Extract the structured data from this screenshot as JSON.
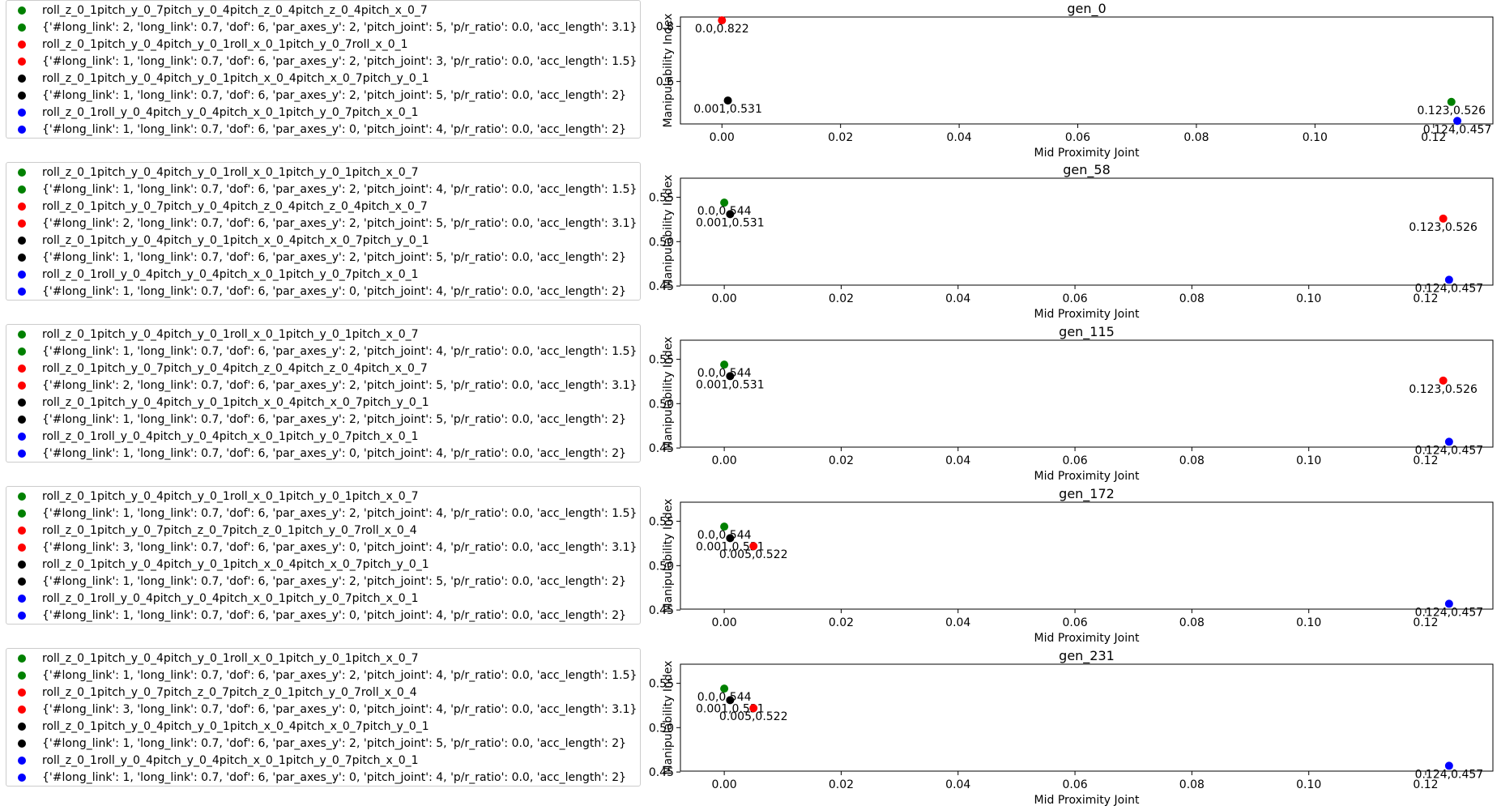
{
  "colors": {
    "green": "#008000",
    "red": "#ff0000",
    "black": "#000000",
    "blue": "#0000ff"
  },
  "legends": [
    {
      "entries": [
        {
          "color": "green",
          "label": "roll_z_0_1pitch_y_0_7pitch_y_0_4pitch_z_0_4pitch_z_0_4pitch_x_0_7"
        },
        {
          "color": "green",
          "label": "{'#long_link': 2, 'long_link': 0.7, 'dof': 6, 'par_axes_y': 2, 'pitch_joint': 5, 'p/r_ratio': 0.0, 'acc_length': 3.1}"
        },
        {
          "color": "red",
          "label": "roll_z_0_1pitch_y_0_4pitch_y_0_1roll_x_0_1pitch_y_0_7roll_x_0_1"
        },
        {
          "color": "red",
          "label": "{'#long_link': 1, 'long_link': 0.7, 'dof': 6, 'par_axes_y': 2, 'pitch_joint': 3, 'p/r_ratio': 0.0, 'acc_length': 1.5}"
        },
        {
          "color": "black",
          "label": "roll_z_0_1pitch_y_0_4pitch_y_0_1pitch_x_0_4pitch_x_0_7pitch_y_0_1"
        },
        {
          "color": "black",
          "label": "{'#long_link': 1, 'long_link': 0.7, 'dof': 6, 'par_axes_y': 2, 'pitch_joint': 5, 'p/r_ratio': 0.0, 'acc_length': 2}"
        },
        {
          "color": "blue",
          "label": "roll_z_0_1roll_y_0_4pitch_y_0_4pitch_x_0_1pitch_y_0_7pitch_x_0_1"
        },
        {
          "color": "blue",
          "label": "{'#long_link': 1, 'long_link': 0.7, 'dof': 6, 'par_axes_y': 0, 'pitch_joint': 4, 'p/r_ratio': 0.0, 'acc_length': 2}"
        }
      ]
    },
    {
      "entries": [
        {
          "color": "green",
          "label": "roll_z_0_1pitch_y_0_4pitch_y_0_1roll_x_0_1pitch_y_0_1pitch_x_0_7"
        },
        {
          "color": "green",
          "label": "{'#long_link': 1, 'long_link': 0.7, 'dof': 6, 'par_axes_y': 2, 'pitch_joint': 4, 'p/r_ratio': 0.0, 'acc_length': 1.5}"
        },
        {
          "color": "red",
          "label": "roll_z_0_1pitch_y_0_7pitch_y_0_4pitch_z_0_4pitch_z_0_4pitch_x_0_7"
        },
        {
          "color": "red",
          "label": "{'#long_link': 2, 'long_link': 0.7, 'dof': 6, 'par_axes_y': 2, 'pitch_joint': 5, 'p/r_ratio': 0.0, 'acc_length': 3.1}"
        },
        {
          "color": "black",
          "label": "roll_z_0_1pitch_y_0_4pitch_y_0_1pitch_x_0_4pitch_x_0_7pitch_y_0_1"
        },
        {
          "color": "black",
          "label": "{'#long_link': 1, 'long_link': 0.7, 'dof': 6, 'par_axes_y': 2, 'pitch_joint': 5, 'p/r_ratio': 0.0, 'acc_length': 2}"
        },
        {
          "color": "blue",
          "label": "roll_z_0_1roll_y_0_4pitch_y_0_4pitch_x_0_1pitch_y_0_7pitch_x_0_1"
        },
        {
          "color": "blue",
          "label": "{'#long_link': 1, 'long_link': 0.7, 'dof': 6, 'par_axes_y': 0, 'pitch_joint': 4, 'p/r_ratio': 0.0, 'acc_length': 2}"
        }
      ]
    },
    {
      "entries": [
        {
          "color": "green",
          "label": "roll_z_0_1pitch_y_0_4pitch_y_0_1roll_x_0_1pitch_y_0_1pitch_x_0_7"
        },
        {
          "color": "green",
          "label": "{'#long_link': 1, 'long_link': 0.7, 'dof': 6, 'par_axes_y': 2, 'pitch_joint': 4, 'p/r_ratio': 0.0, 'acc_length': 1.5}"
        },
        {
          "color": "red",
          "label": "roll_z_0_1pitch_y_0_7pitch_y_0_4pitch_z_0_4pitch_z_0_4pitch_x_0_7"
        },
        {
          "color": "red",
          "label": "{'#long_link': 2, 'long_link': 0.7, 'dof': 6, 'par_axes_y': 2, 'pitch_joint': 5, 'p/r_ratio': 0.0, 'acc_length': 3.1}"
        },
        {
          "color": "black",
          "label": "roll_z_0_1pitch_y_0_4pitch_y_0_1pitch_x_0_4pitch_x_0_7pitch_y_0_1"
        },
        {
          "color": "black",
          "label": "{'#long_link': 1, 'long_link': 0.7, 'dof': 6, 'par_axes_y': 2, 'pitch_joint': 5, 'p/r_ratio': 0.0, 'acc_length': 2}"
        },
        {
          "color": "blue",
          "label": "roll_z_0_1roll_y_0_4pitch_y_0_4pitch_x_0_1pitch_y_0_7pitch_x_0_1"
        },
        {
          "color": "blue",
          "label": "{'#long_link': 1, 'long_link': 0.7, 'dof': 6, 'par_axes_y': 0, 'pitch_joint': 4, 'p/r_ratio': 0.0, 'acc_length': 2}"
        }
      ]
    },
    {
      "entries": [
        {
          "color": "green",
          "label": "roll_z_0_1pitch_y_0_4pitch_y_0_1roll_x_0_1pitch_y_0_1pitch_x_0_7"
        },
        {
          "color": "green",
          "label": "{'#long_link': 1, 'long_link': 0.7, 'dof': 6, 'par_axes_y': 2, 'pitch_joint': 4, 'p/r_ratio': 0.0, 'acc_length': 1.5}"
        },
        {
          "color": "red",
          "label": "roll_z_0_1pitch_y_0_7pitch_z_0_7pitch_z_0_1pitch_y_0_7roll_x_0_4"
        },
        {
          "color": "red",
          "label": "{'#long_link': 3, 'long_link': 0.7, 'dof': 6, 'par_axes_y': 0, 'pitch_joint': 4, 'p/r_ratio': 0.0, 'acc_length': 3.1}"
        },
        {
          "color": "black",
          "label": "roll_z_0_1pitch_y_0_4pitch_y_0_1pitch_x_0_4pitch_x_0_7pitch_y_0_1"
        },
        {
          "color": "black",
          "label": "{'#long_link': 1, 'long_link': 0.7, 'dof': 6, 'par_axes_y': 2, 'pitch_joint': 5, 'p/r_ratio': 0.0, 'acc_length': 2}"
        },
        {
          "color": "blue",
          "label": "roll_z_0_1roll_y_0_4pitch_y_0_4pitch_x_0_1pitch_y_0_7pitch_x_0_1"
        },
        {
          "color": "blue",
          "label": "{'#long_link': 1, 'long_link': 0.7, 'dof': 6, 'par_axes_y': 0, 'pitch_joint': 4, 'p/r_ratio': 0.0, 'acc_length': 2}"
        }
      ]
    },
    {
      "entries": [
        {
          "color": "green",
          "label": "roll_z_0_1pitch_y_0_4pitch_y_0_1roll_x_0_1pitch_y_0_1pitch_x_0_7"
        },
        {
          "color": "green",
          "label": "{'#long_link': 1, 'long_link': 0.7, 'dof': 6, 'par_axes_y': 2, 'pitch_joint': 4, 'p/r_ratio': 0.0, 'acc_length': 1.5}"
        },
        {
          "color": "red",
          "label": "roll_z_0_1pitch_y_0_7pitch_z_0_7pitch_z_0_1pitch_y_0_7roll_x_0_4"
        },
        {
          "color": "red",
          "label": "{'#long_link': 3, 'long_link': 0.7, 'dof': 6, 'par_axes_y': 0, 'pitch_joint': 4, 'p/r_ratio': 0.0, 'acc_length': 3.1}"
        },
        {
          "color": "black",
          "label": "roll_z_0_1pitch_y_0_4pitch_y_0_1pitch_x_0_4pitch_x_0_7pitch_y_0_1"
        },
        {
          "color": "black",
          "label": "{'#long_link': 1, 'long_link': 0.7, 'dof': 6, 'par_axes_y': 2, 'pitch_joint': 5, 'p/r_ratio': 0.0, 'acc_length': 2}"
        },
        {
          "color": "blue",
          "label": "roll_z_0_1roll_y_0_4pitch_y_0_4pitch_x_0_1pitch_y_0_7pitch_x_0_1"
        },
        {
          "color": "blue",
          "label": "{'#long_link': 1, 'long_link': 0.7, 'dof': 6, 'par_axes_y': 0, 'pitch_joint': 4, 'p/r_ratio': 0.0, 'acc_length': 2}"
        }
      ]
    }
  ],
  "chart_data": [
    {
      "type": "scatter",
      "title": "gen_0",
      "xlabel": "Mid Proximity Joint",
      "ylabel": "Manipulability Index",
      "xlim": [
        -0.007,
        0.13
      ],
      "ylim": [
        0.446,
        0.834
      ],
      "xticks": [
        "0.00",
        "0.02",
        "0.04",
        "0.06",
        "0.08",
        "0.10",
        "0.12"
      ],
      "xtick_values": [
        0.0,
        0.02,
        0.04,
        0.06,
        0.08,
        0.1,
        0.12
      ],
      "yticks": [
        "0.6",
        "0.8"
      ],
      "ytick_values": [
        0.6,
        0.8
      ],
      "points": [
        {
          "color": "red",
          "x": 0.0,
          "y": 0.822,
          "label": "0.0,0.822"
        },
        {
          "color": "black",
          "x": 0.001,
          "y": 0.531,
          "label": "0.001,0.531"
        },
        {
          "color": "green",
          "x": 0.123,
          "y": 0.526,
          "label": "0.123,0.526"
        },
        {
          "color": "blue",
          "x": 0.124,
          "y": 0.457,
          "label": "0.124,0.457"
        }
      ]
    },
    {
      "type": "scatter",
      "title": "gen_58",
      "xlabel": "Mid Proximity Joint",
      "ylabel": "Manipulability Index",
      "xlim": [
        -0.0075,
        0.1315
      ],
      "ylim": [
        0.451,
        0.5715
      ],
      "xticks": [
        "0.00",
        "0.02",
        "0.04",
        "0.06",
        "0.08",
        "0.10",
        "0.12"
      ],
      "xtick_values": [
        0.0,
        0.02,
        0.04,
        0.06,
        0.08,
        0.1,
        0.12
      ],
      "yticks": [
        "0.45",
        "0.50",
        "0.55"
      ],
      "ytick_values": [
        0.45,
        0.5,
        0.55
      ],
      "points": [
        {
          "color": "green",
          "x": 0.0,
          "y": 0.544,
          "label": "0.0,0.544"
        },
        {
          "color": "black",
          "x": 0.001,
          "y": 0.531,
          "label": "0.001,0.531"
        },
        {
          "color": "red",
          "x": 0.123,
          "y": 0.526,
          "label": "0.123,0.526"
        },
        {
          "color": "blue",
          "x": 0.124,
          "y": 0.457,
          "label": "0.124,0.457"
        }
      ]
    },
    {
      "type": "scatter",
      "title": "gen_115",
      "xlabel": "Mid Proximity Joint",
      "ylabel": "Manipulability Index",
      "xlim": [
        -0.0075,
        0.1315
      ],
      "ylim": [
        0.451,
        0.5715
      ],
      "xticks": [
        "0.00",
        "0.02",
        "0.04",
        "0.06",
        "0.08",
        "0.10",
        "0.12"
      ],
      "xtick_values": [
        0.0,
        0.02,
        0.04,
        0.06,
        0.08,
        0.1,
        0.12
      ],
      "yticks": [
        "0.45",
        "0.50",
        "0.55"
      ],
      "ytick_values": [
        0.45,
        0.5,
        0.55
      ],
      "points": [
        {
          "color": "green",
          "x": 0.0,
          "y": 0.544,
          "label": "0.0,0.544"
        },
        {
          "color": "black",
          "x": 0.001,
          "y": 0.531,
          "label": "0.001,0.531"
        },
        {
          "color": "red",
          "x": 0.123,
          "y": 0.526,
          "label": "0.123,0.526"
        },
        {
          "color": "blue",
          "x": 0.124,
          "y": 0.457,
          "label": "0.124,0.457"
        }
      ]
    },
    {
      "type": "scatter",
      "title": "gen_172",
      "xlabel": "Mid Proximity Joint",
      "ylabel": "Manipulability Index",
      "xlim": [
        -0.0075,
        0.1315
      ],
      "ylim": [
        0.451,
        0.5715
      ],
      "xticks": [
        "0.00",
        "0.02",
        "0.04",
        "0.06",
        "0.08",
        "0.10",
        "0.12"
      ],
      "xtick_values": [
        0.0,
        0.02,
        0.04,
        0.06,
        0.08,
        0.1,
        0.12
      ],
      "yticks": [
        "0.45",
        "0.50",
        "0.55"
      ],
      "ytick_values": [
        0.45,
        0.5,
        0.55
      ],
      "points": [
        {
          "color": "green",
          "x": 0.0,
          "y": 0.544,
          "label": "0.0,0.544"
        },
        {
          "color": "black",
          "x": 0.001,
          "y": 0.531,
          "label": "0.001,0.531"
        },
        {
          "color": "red",
          "x": 0.005,
          "y": 0.522,
          "label": "0.005,0.522"
        },
        {
          "color": "blue",
          "x": 0.124,
          "y": 0.457,
          "label": "0.124,0.457"
        }
      ]
    },
    {
      "type": "scatter",
      "title": "gen_231",
      "xlabel": "Mid Proximity Joint",
      "ylabel": "Manipulability Index",
      "xlim": [
        -0.0075,
        0.1315
      ],
      "ylim": [
        0.451,
        0.5715
      ],
      "xticks": [
        "0.00",
        "0.02",
        "0.04",
        "0.06",
        "0.08",
        "0.10",
        "0.12"
      ],
      "xtick_values": [
        0.0,
        0.02,
        0.04,
        0.06,
        0.08,
        0.1,
        0.12
      ],
      "yticks": [
        "0.45",
        "0.50",
        "0.55"
      ],
      "ytick_values": [
        0.45,
        0.5,
        0.55
      ],
      "points": [
        {
          "color": "green",
          "x": 0.0,
          "y": 0.544,
          "label": "0.0,0.544"
        },
        {
          "color": "black",
          "x": 0.001,
          "y": 0.531,
          "label": "0.001,0.531"
        },
        {
          "color": "red",
          "x": 0.005,
          "y": 0.522,
          "label": "0.005,0.522"
        },
        {
          "color": "blue",
          "x": 0.124,
          "y": 0.457,
          "label": "0.124,0.457"
        }
      ]
    }
  ]
}
